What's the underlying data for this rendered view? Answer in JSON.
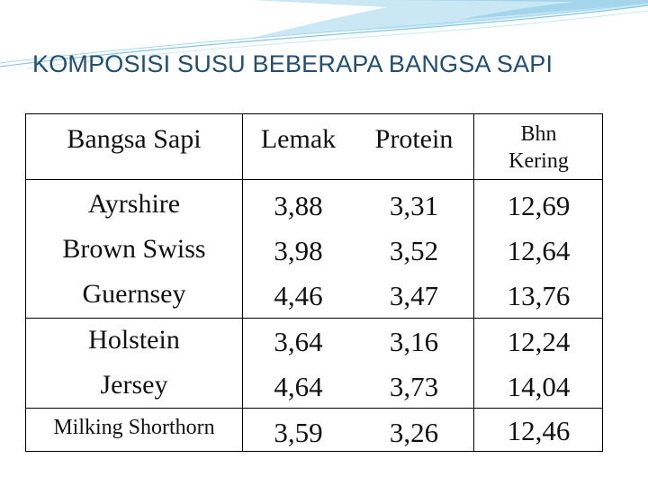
{
  "slide": {
    "title": "KOMPOSISI SUSU BEBERAPA BANGSA SAPI"
  },
  "colors": {
    "title": "#1f4e79",
    "decoration": "#7ec8e3"
  },
  "table": {
    "headers": {
      "breed": "Bangsa Sapi",
      "fat": "Lemak",
      "protein": "Protein",
      "dry_line1": "Bhn",
      "dry_line2": "Kering"
    },
    "rows": [
      {
        "breed": "Ayrshire",
        "fat": "3,88",
        "protein": "3,31",
        "dry": "12,69"
      },
      {
        "breed": "Brown Swiss",
        "fat": "3,98",
        "protein": "3,52",
        "dry": "12,64"
      },
      {
        "breed": "Guernsey",
        "fat": "4,46",
        "protein": "3,47",
        "dry": "13,76"
      },
      {
        "breed": "Holstein",
        "fat": "3,64",
        "protein": "3,16",
        "dry": "12,24"
      },
      {
        "breed": "Jersey",
        "fat": "4,64",
        "protein": "3,73",
        "dry": "14,04"
      },
      {
        "breed": "Milking Shorthorn",
        "fat": "3,59",
        "protein": "3,26",
        "dry": "12,46"
      }
    ]
  }
}
